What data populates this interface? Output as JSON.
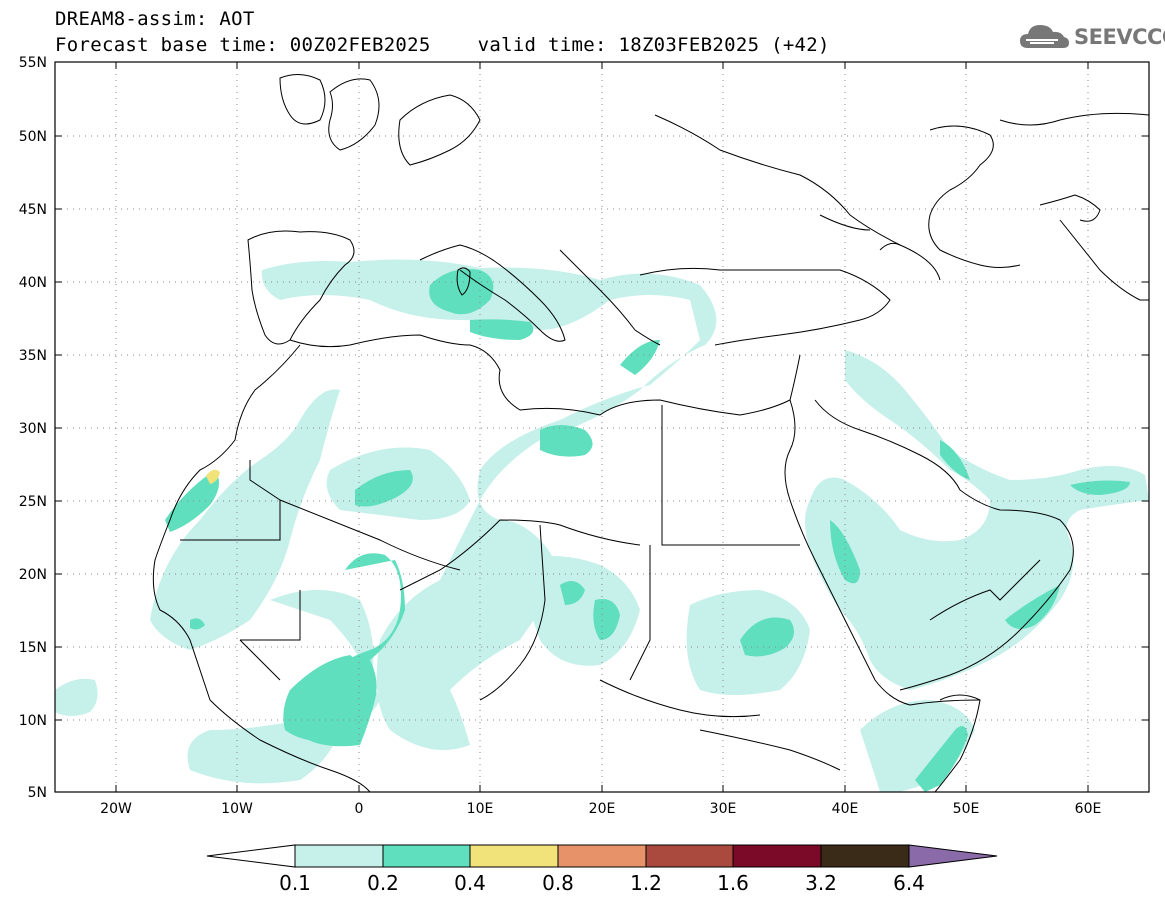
{
  "header": {
    "line1": "DREAM8-assim: AOT",
    "line2": "Forecast base time: 00Z02FEB2025    valid time: 18Z03FEB2025 (+42)"
  },
  "logo": {
    "text": "SEEVCCC",
    "icon": "cloud-icon"
  },
  "map": {
    "lon_range": [
      -25,
      65
    ],
    "lat_range": [
      5,
      55
    ],
    "lat_ticks": [
      "55N",
      "50N",
      "45N",
      "40N",
      "35N",
      "30N",
      "25N",
      "20N",
      "15N",
      "10N",
      "5N"
    ],
    "lon_ticks": [
      "20W",
      "10W",
      "0",
      "10E",
      "20E",
      "30E",
      "40E",
      "50E",
      "60E"
    ],
    "grid": "dotted"
  },
  "colorbar": {
    "labels": [
      "0.1",
      "0.2",
      "0.4",
      "0.8",
      "1.2",
      "1.6",
      "3.2",
      "6.4"
    ],
    "colors": [
      "#ffffff",
      "#c6f0ea",
      "#5fdfbd",
      "#f2e27a",
      "#e8926a",
      "#aa4a3e",
      "#7a0a28",
      "#3a2a18",
      "#8a6aa8"
    ]
  }
}
